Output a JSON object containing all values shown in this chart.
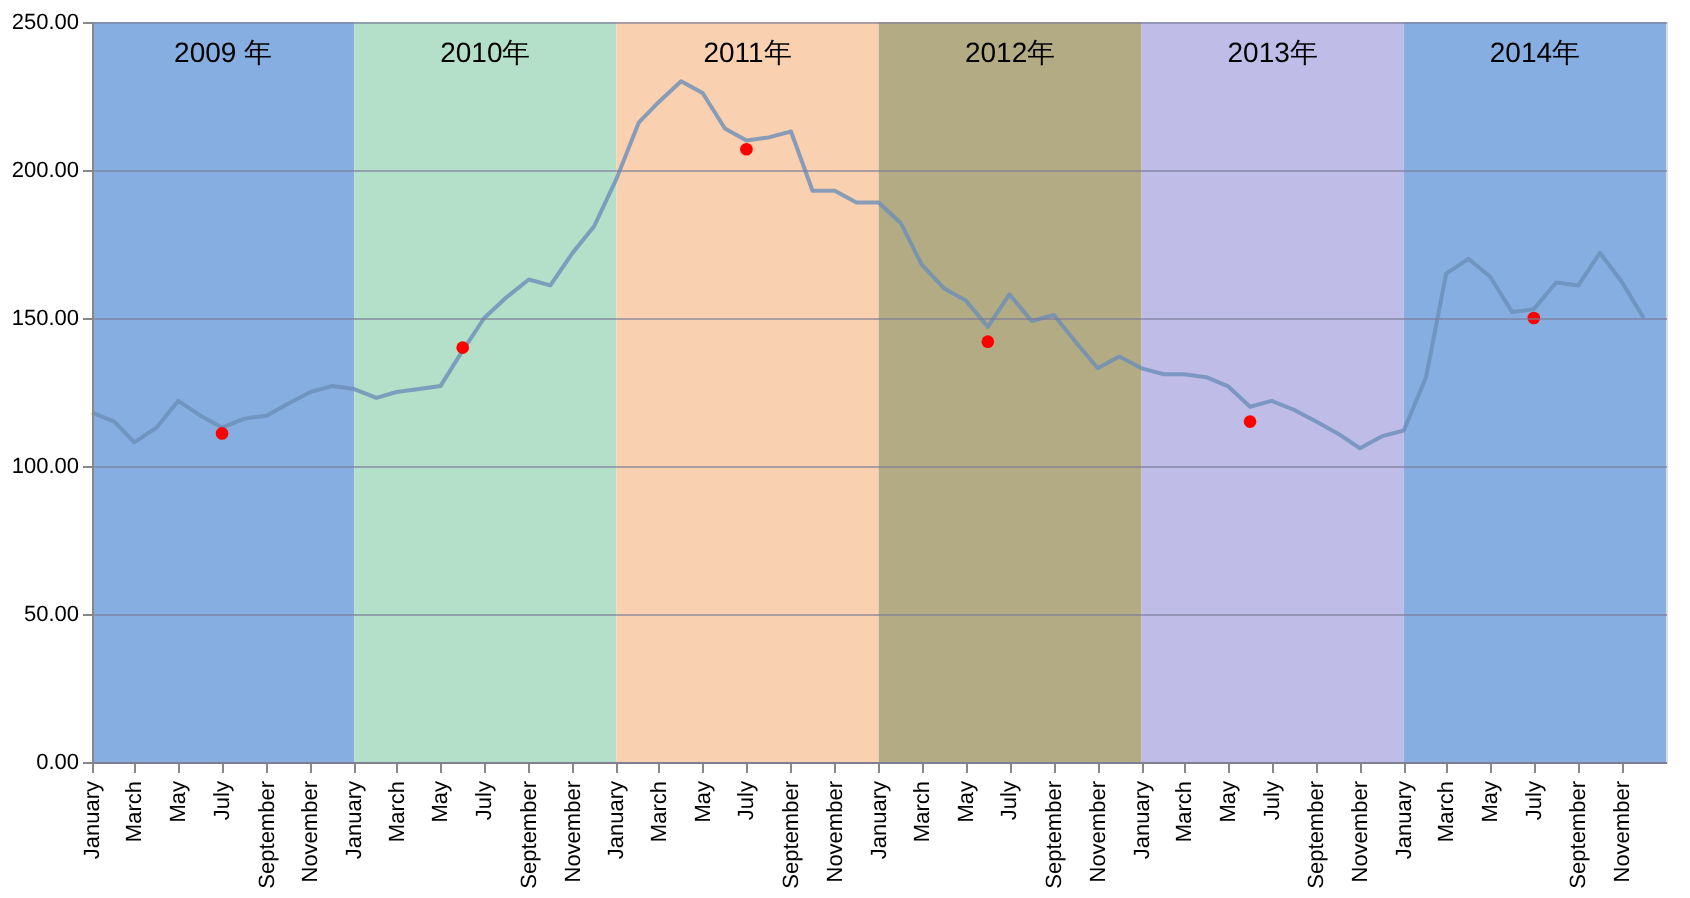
{
  "chart_data": {
    "type": "line",
    "x": [
      "2009-01",
      "2009-02",
      "2009-03",
      "2009-04",
      "2009-05",
      "2009-06",
      "2009-07",
      "2009-08",
      "2009-09",
      "2009-10",
      "2009-11",
      "2009-12",
      "2010-01",
      "2010-02",
      "2010-03",
      "2010-04",
      "2010-05",
      "2010-06",
      "2010-07",
      "2010-08",
      "2010-09",
      "2010-10",
      "2010-11",
      "2010-12",
      "2011-01",
      "2011-02",
      "2011-03",
      "2011-04",
      "2011-05",
      "2011-06",
      "2011-07",
      "2011-08",
      "2011-09",
      "2011-10",
      "2011-11",
      "2011-12",
      "2012-01",
      "2012-02",
      "2012-03",
      "2012-04",
      "2012-05",
      "2012-06",
      "2012-07",
      "2012-08",
      "2012-09",
      "2012-10",
      "2012-11",
      "2012-12",
      "2013-01",
      "2013-02",
      "2013-03",
      "2013-04",
      "2013-05",
      "2013-06",
      "2013-07",
      "2013-08",
      "2013-09",
      "2013-10",
      "2013-11",
      "2013-12",
      "2014-01",
      "2014-02",
      "2014-03",
      "2014-04",
      "2014-05",
      "2014-06",
      "2014-07",
      "2014-08",
      "2014-09",
      "2014-10",
      "2014-11",
      "2014-12"
    ],
    "series": [
      {
        "color": "#6b8fb9",
        "values": [
          118,
          115,
          108,
          113,
          122,
          117,
          113,
          116,
          117,
          121,
          125,
          127,
          126,
          123,
          125,
          126,
          127,
          139,
          150,
          157,
          163,
          161,
          172,
          181,
          197,
          216,
          223,
          230,
          226,
          214,
          210,
          211,
          213,
          193,
          193,
          189,
          189,
          182,
          168,
          160,
          156,
          147,
          158,
          149,
          151,
          142,
          133,
          137,
          133,
          131,
          131,
          130,
          127,
          120,
          122,
          119,
          115,
          111,
          106,
          110,
          112,
          130,
          165,
          170,
          164,
          152,
          153,
          162,
          161,
          172,
          162,
          150
        ]
      },
      {
        "type": "scatter",
        "color": "#ff0000",
        "x": [
          "2009-07",
          "2010-06",
          "2011-07",
          "2012-06",
          "2013-06",
          "2014-07"
        ],
        "values": [
          111,
          140,
          207,
          142,
          115,
          150
        ]
      }
    ],
    "xlim": [
      "2009-01",
      "2015-01"
    ],
    "xticks": [
      {
        "value": "2009-01",
        "label": "January"
      },
      {
        "value": "2009-03",
        "label": "March"
      },
      {
        "value": "2009-05",
        "label": "May"
      },
      {
        "value": "2009-07",
        "label": "July"
      },
      {
        "value": "2009-09",
        "label": "September"
      },
      {
        "value": "2009-11",
        "label": "November"
      },
      {
        "value": "2010-01",
        "label": "January"
      },
      {
        "value": "2010-03",
        "label": "March"
      },
      {
        "value": "2010-05",
        "label": "May"
      },
      {
        "value": "2010-07",
        "label": "July"
      },
      {
        "value": "2010-09",
        "label": "September"
      },
      {
        "value": "2010-11",
        "label": "November"
      },
      {
        "value": "2011-01",
        "label": "January"
      },
      {
        "value": "2011-03",
        "label": "March"
      },
      {
        "value": "2011-05",
        "label": "May"
      },
      {
        "value": "2011-07",
        "label": "July"
      },
      {
        "value": "2011-09",
        "label": "September"
      },
      {
        "value": "2011-11",
        "label": "November"
      },
      {
        "value": "2012-01",
        "label": "January"
      },
      {
        "value": "2012-03",
        "label": "March"
      },
      {
        "value": "2012-05",
        "label": "May"
      },
      {
        "value": "2012-07",
        "label": "July"
      },
      {
        "value": "2012-09",
        "label": "September"
      },
      {
        "value": "2012-11",
        "label": "November"
      },
      {
        "value": "2013-01",
        "label": "January"
      },
      {
        "value": "2013-03",
        "label": "March"
      },
      {
        "value": "2013-05",
        "label": "May"
      },
      {
        "value": "2013-07",
        "label": "July"
      },
      {
        "value": "2013-09",
        "label": "September"
      },
      {
        "value": "2013-11",
        "label": "November"
      },
      {
        "value": "2014-01",
        "label": "January"
      },
      {
        "value": "2014-03",
        "label": "March"
      },
      {
        "value": "2014-05",
        "label": "May"
      },
      {
        "value": "2014-07",
        "label": "July"
      },
      {
        "value": "2014-09",
        "label": "September"
      },
      {
        "value": "2014-11",
        "label": "November"
      }
    ],
    "ylim": [
      0,
      250
    ],
    "yticks": [
      {
        "value": 0,
        "label": "0.00"
      },
      {
        "value": 50,
        "label": "50.00"
      },
      {
        "value": 100,
        "label": "100.00"
      },
      {
        "value": 150,
        "label": "150.00"
      },
      {
        "value": 200,
        "label": "200.00"
      },
      {
        "value": 250,
        "label": "250.00"
      }
    ],
    "grid": "y",
    "bands": [
      {
        "axis": "x",
        "from": "2009-01",
        "to": "2010-01",
        "label": "2009 年",
        "color": "#87aee0"
      },
      {
        "axis": "x",
        "from": "2010-01",
        "to": "2011-01",
        "label": "2010年",
        "color": "#b4dfc8"
      },
      {
        "axis": "x",
        "from": "2011-01",
        "to": "2012-01",
        "label": "2011年",
        "color": "#f9d1b0"
      },
      {
        "axis": "x",
        "from": "2012-01",
        "to": "2013-01",
        "label": "2012年",
        "color": "#b3ab84"
      },
      {
        "axis": "x",
        "from": "2013-01",
        "to": "2014-01",
        "label": "2013年",
        "color": "#bfbde7"
      },
      {
        "axis": "x",
        "from": "2014-01",
        "to": "2015-01",
        "label": "2014年",
        "color": "#87aee0"
      }
    ]
  }
}
